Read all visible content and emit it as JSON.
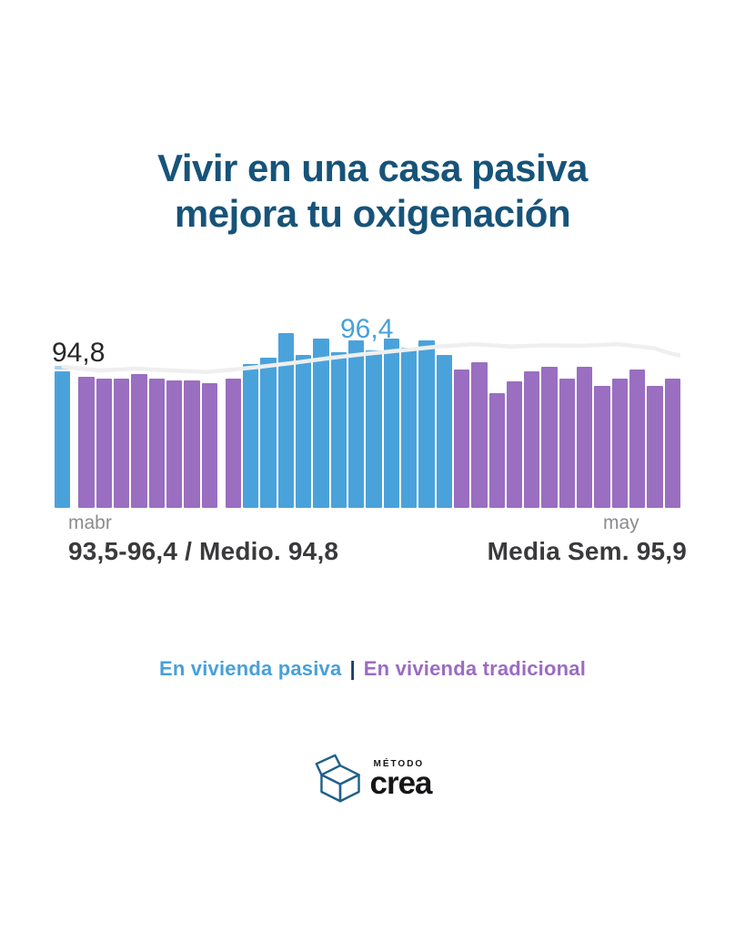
{
  "title": {
    "line1": "Vivir en una casa pasiva",
    "line2": "mejora tu oxigenación"
  },
  "stats": {
    "left": "93,5-96,4 / Medio. 94,8",
    "right": "Media Sem. 95,9"
  },
  "legend": {
    "pasiva": "En vivienda pasiva",
    "separator": "|",
    "tradicional": "En vivienda tradicional"
  },
  "logo": {
    "top": "MÉTODO",
    "bottom": "crea"
  },
  "colors": {
    "title": "#175379",
    "pasiva": "#4aa2db",
    "pasiva_cap": "#a7d4ef",
    "tradicional": "#9a6ec0",
    "trend": "#efefef",
    "value_dark": "#28282a",
    "value_blue": "#4aa0d9",
    "axis_gray": "#8c8c90",
    "stats": "#3a3a3c",
    "legend_pasiva": "#48a0d9",
    "legend_sep": "#1c3f63",
    "legend_tradicional": "#9a6cc3",
    "logo_stroke": "#20608a",
    "logo_text": "#161618"
  },
  "chart_data": {
    "type": "bar",
    "title": "Vivir en una casa pasiva mejora tu oxigenación",
    "x_axis_labels": [
      "mabr",
      "may"
    ],
    "legend": [
      "En vivienda pasiva",
      "En vivienda tradicional"
    ],
    "legend_position": "bottom",
    "grid": false,
    "ylim": [
      89.1,
      97.4
    ],
    "annotations": {
      "first_bar": "94,8",
      "peak": "96,4"
    },
    "range_min": 93.5,
    "range_max": 96.4,
    "medio": 94.8,
    "media_semanal": 95.9,
    "gap_after_indices": [
      0,
      8
    ],
    "bars": [
      {
        "v": 94.8,
        "s": "pasiva",
        "cap": true
      },
      {
        "v": 94.6,
        "s": "tradicional"
      },
      {
        "v": 94.5,
        "s": "tradicional"
      },
      {
        "v": 94.5,
        "s": "tradicional"
      },
      {
        "v": 94.7,
        "s": "tradicional"
      },
      {
        "v": 94.5,
        "s": "tradicional"
      },
      {
        "v": 94.45,
        "s": "tradicional"
      },
      {
        "v": 94.45,
        "s": "tradicional"
      },
      {
        "v": 94.3,
        "s": "tradicional"
      },
      {
        "v": 94.5,
        "s": "tradicional"
      },
      {
        "v": 95.1,
        "s": "pasiva"
      },
      {
        "v": 95.4,
        "s": "pasiva"
      },
      {
        "v": 96.4,
        "s": "pasiva"
      },
      {
        "v": 95.5,
        "s": "pasiva"
      },
      {
        "v": 96.2,
        "s": "pasiva"
      },
      {
        "v": 95.6,
        "s": "pasiva"
      },
      {
        "v": 96.1,
        "s": "pasiva"
      },
      {
        "v": 95.7,
        "s": "pasiva"
      },
      {
        "v": 96.2,
        "s": "pasiva"
      },
      {
        "v": 95.8,
        "s": "pasiva"
      },
      {
        "v": 96.1,
        "s": "pasiva"
      },
      {
        "v": 95.5,
        "s": "pasiva"
      },
      {
        "v": 94.9,
        "s": "tradicional"
      },
      {
        "v": 95.2,
        "s": "tradicional"
      },
      {
        "v": 93.9,
        "s": "tradicional"
      },
      {
        "v": 94.4,
        "s": "tradicional"
      },
      {
        "v": 94.8,
        "s": "tradicional"
      },
      {
        "v": 95.0,
        "s": "tradicional"
      },
      {
        "v": 94.5,
        "s": "tradicional"
      },
      {
        "v": 95.0,
        "s": "tradicional"
      },
      {
        "v": 94.2,
        "s": "tradicional"
      },
      {
        "v": 94.5,
        "s": "tradicional"
      },
      {
        "v": 94.9,
        "s": "tradicional"
      },
      {
        "v": 94.2,
        "s": "tradicional"
      },
      {
        "v": 94.5,
        "s": "tradicional"
      }
    ],
    "trend": [
      [
        0,
        95.0
      ],
      [
        2,
        94.85
      ],
      [
        4,
        94.92
      ],
      [
        6,
        94.85
      ],
      [
        8,
        94.78
      ],
      [
        9,
        94.85
      ],
      [
        11,
        95.0
      ],
      [
        13,
        95.18
      ],
      [
        15,
        95.38
      ],
      [
        17,
        95.55
      ],
      [
        19,
        95.7
      ],
      [
        21,
        95.85
      ],
      [
        23,
        95.95
      ],
      [
        25,
        95.85
      ],
      [
        27,
        95.9
      ],
      [
        29,
        95.88
      ],
      [
        31,
        95.95
      ],
      [
        33,
        95.78
      ],
      [
        34,
        95.55
      ]
    ]
  }
}
